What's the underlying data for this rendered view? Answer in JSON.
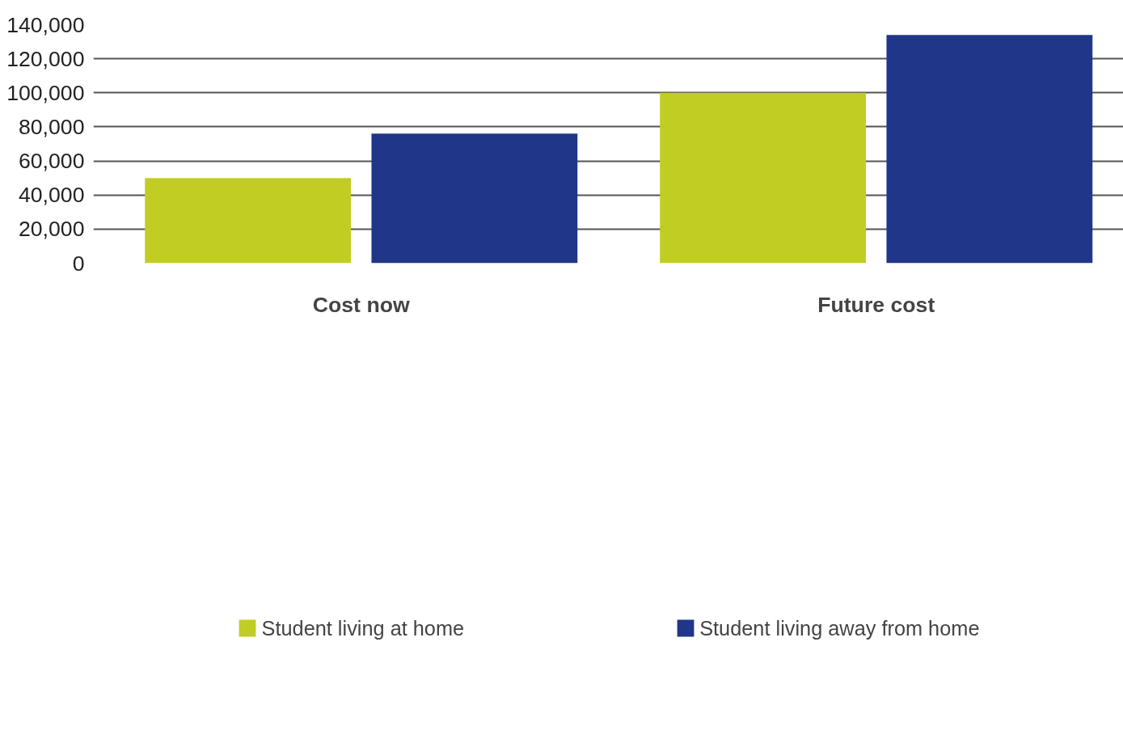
{
  "chart_data": {
    "type": "bar",
    "categories": [
      "Cost now",
      "Future cost"
    ],
    "series": [
      {
        "name": "Student living at home",
        "color": "#c2cd23",
        "values": [
          50000,
          100000
        ]
      },
      {
        "name": "Student living away from home",
        "color": "#203688",
        "values": [
          76000,
          134000
        ]
      }
    ],
    "ylim": [
      0,
      140000
    ],
    "yticks": [
      {
        "value": 0,
        "label": "0"
      },
      {
        "value": 20000,
        "label": "20,000"
      },
      {
        "value": 40000,
        "label": "40,000"
      },
      {
        "value": 60000,
        "label": "60,000"
      },
      {
        "value": 80000,
        "label": "80,000"
      },
      {
        "value": 100000,
        "label": "100,000"
      },
      {
        "value": 120000,
        "label": "120,000"
      },
      {
        "value": 140000,
        "label": "140,000"
      }
    ],
    "grid": "y",
    "legend": "bottom"
  }
}
